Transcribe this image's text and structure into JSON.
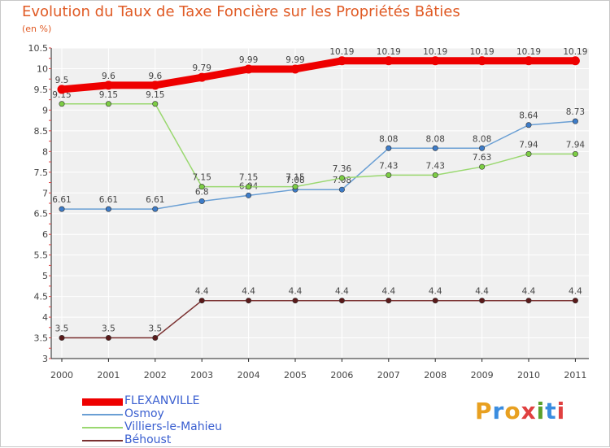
{
  "chart_data": {
    "type": "line",
    "title": "Evolution du Taux de Taxe Foncière sur les Propriétés Bâties",
    "unit_label": "(en %)",
    "xlabel": "",
    "ylabel": "",
    "ylim": [
      3,
      10.5
    ],
    "y_ticks": [
      "3",
      "3.5",
      "4",
      "4.5",
      "5",
      "5.5",
      "6",
      "6.5",
      "7",
      "7.5",
      "8",
      "8.5",
      "9",
      "9.5",
      "10",
      "10.5"
    ],
    "categories": [
      "2000",
      "2001",
      "2002",
      "2003",
      "2004",
      "2005",
      "2006",
      "2007",
      "2008",
      "2009",
      "2010",
      "2011"
    ],
    "grid": true,
    "legend_position": "bottom-left",
    "series": [
      {
        "name": "FLEXANVILLE",
        "color": "#ee0000",
        "style": "thick",
        "values": [
          9.5,
          9.6,
          9.6,
          9.79,
          9.99,
          9.99,
          10.19,
          10.19,
          10.19,
          10.19,
          10.19,
          10.19
        ],
        "labels": [
          "9.5",
          "9.6",
          "9.6",
          "9.79",
          "9.99",
          "9.99",
          "10.19",
          "10.19",
          "10.19",
          "10.19",
          "10.19",
          "10.19"
        ]
      },
      {
        "name": "Osmoy",
        "color": "#6a9fd4",
        "marker_color": "#3d7cc9",
        "style": "thin",
        "values": [
          6.61,
          6.61,
          6.61,
          6.8,
          6.94,
          7.08,
          7.08,
          8.08,
          8.08,
          8.08,
          8.64,
          8.73
        ],
        "labels": [
          "6.61",
          "6.61",
          "6.61",
          "6.8",
          "6.94",
          "7.08",
          "7.08",
          "8.08",
          "8.08",
          "8.08",
          "8.64",
          "8.73"
        ]
      },
      {
        "name": "Villiers-le-Mahieu",
        "color": "#9ad870",
        "marker_color": "#7ccd44",
        "style": "thin",
        "values": [
          9.15,
          9.15,
          9.15,
          7.15,
          7.15,
          7.15,
          7.36,
          7.43,
          7.43,
          7.63,
          7.94,
          7.94
        ],
        "labels": [
          "9.15",
          "9.15",
          "9.15",
          "7.15",
          "7.15",
          "7.15",
          "7.36",
          "7.43",
          "7.43",
          "7.63",
          "7.94",
          "7.94"
        ]
      },
      {
        "name": "Béhoust",
        "color": "#7a3030",
        "marker_color": "#5a1a1a",
        "style": "thin",
        "values": [
          3.5,
          3.5,
          3.5,
          4.4,
          4.4,
          4.4,
          4.4,
          4.4,
          4.4,
          4.4,
          4.4,
          4.4
        ],
        "labels": [
          "3.5",
          "3.5",
          "3.5",
          "4.4",
          "4.4",
          "4.4",
          "4.4",
          "4.4",
          "4.4",
          "4.4",
          "4.4",
          "4.4"
        ]
      }
    ]
  },
  "logo": {
    "letters": [
      "P",
      "r",
      "o",
      "x",
      "i",
      "t",
      "i"
    ],
    "colors": [
      "#e8a020",
      "#3a8de0",
      "#e8a020",
      "#e04040",
      "#5aa02c",
      "#3a8de0",
      "#e04040"
    ]
  }
}
